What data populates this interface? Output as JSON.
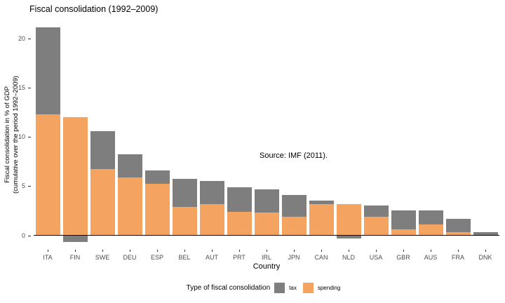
{
  "chart_data": {
    "type": "bar",
    "stacked": true,
    "title": "Fiscal consolidation (1992–2009)",
    "xlabel": "Country",
    "ylabel_line1": "Fiscal consolidation in % of GDP",
    "ylabel_line2": "(cumulative over the period 1992–2009)",
    "annotation": "Source: IMF (2011).",
    "legend_title": "Type of fiscal consolidation",
    "legend_position": "bottom",
    "grid": false,
    "categories": [
      "ITA",
      "FIN",
      "SWE",
      "DEU",
      "ESP",
      "BEL",
      "AUT",
      "PRT",
      "IRL",
      "JPN",
      "CAN",
      "NLD",
      "USA",
      "GBR",
      "AUS",
      "FRA",
      "DNK"
    ],
    "series": [
      {
        "name": "tax",
        "color": "#7E7E7E",
        "values": [
          8.8,
          -0.7,
          3.9,
          2.3,
          1.4,
          2.8,
          2.3,
          2.5,
          2.4,
          2.2,
          0.3,
          -0.3,
          1.1,
          1.9,
          1.4,
          1.4,
          0.3
        ]
      },
      {
        "name": "spending",
        "color": "#F4A460",
        "values": [
          12.3,
          12.0,
          6.7,
          5.9,
          5.2,
          2.9,
          3.2,
          2.4,
          2.3,
          1.9,
          3.2,
          3.2,
          1.9,
          0.6,
          1.1,
          0.3,
          0.0
        ]
      }
    ],
    "totals": [
      21.1,
      12.0,
      10.6,
      8.2,
      6.6,
      5.7,
      5.5,
      4.9,
      4.7,
      4.1,
      3.5,
      3.2,
      3.0,
      2.5,
      2.5,
      1.7,
      0.3
    ],
    "yticks": [
      0,
      5,
      10,
      15,
      20
    ],
    "ylim": [
      -1.0,
      21.5
    ]
  },
  "colors": {
    "tax": "#7E7E7E",
    "spending": "#F4A460",
    "axis_text": "#4d4d4d",
    "axis_line": "#000000",
    "background": "#ffffff"
  }
}
